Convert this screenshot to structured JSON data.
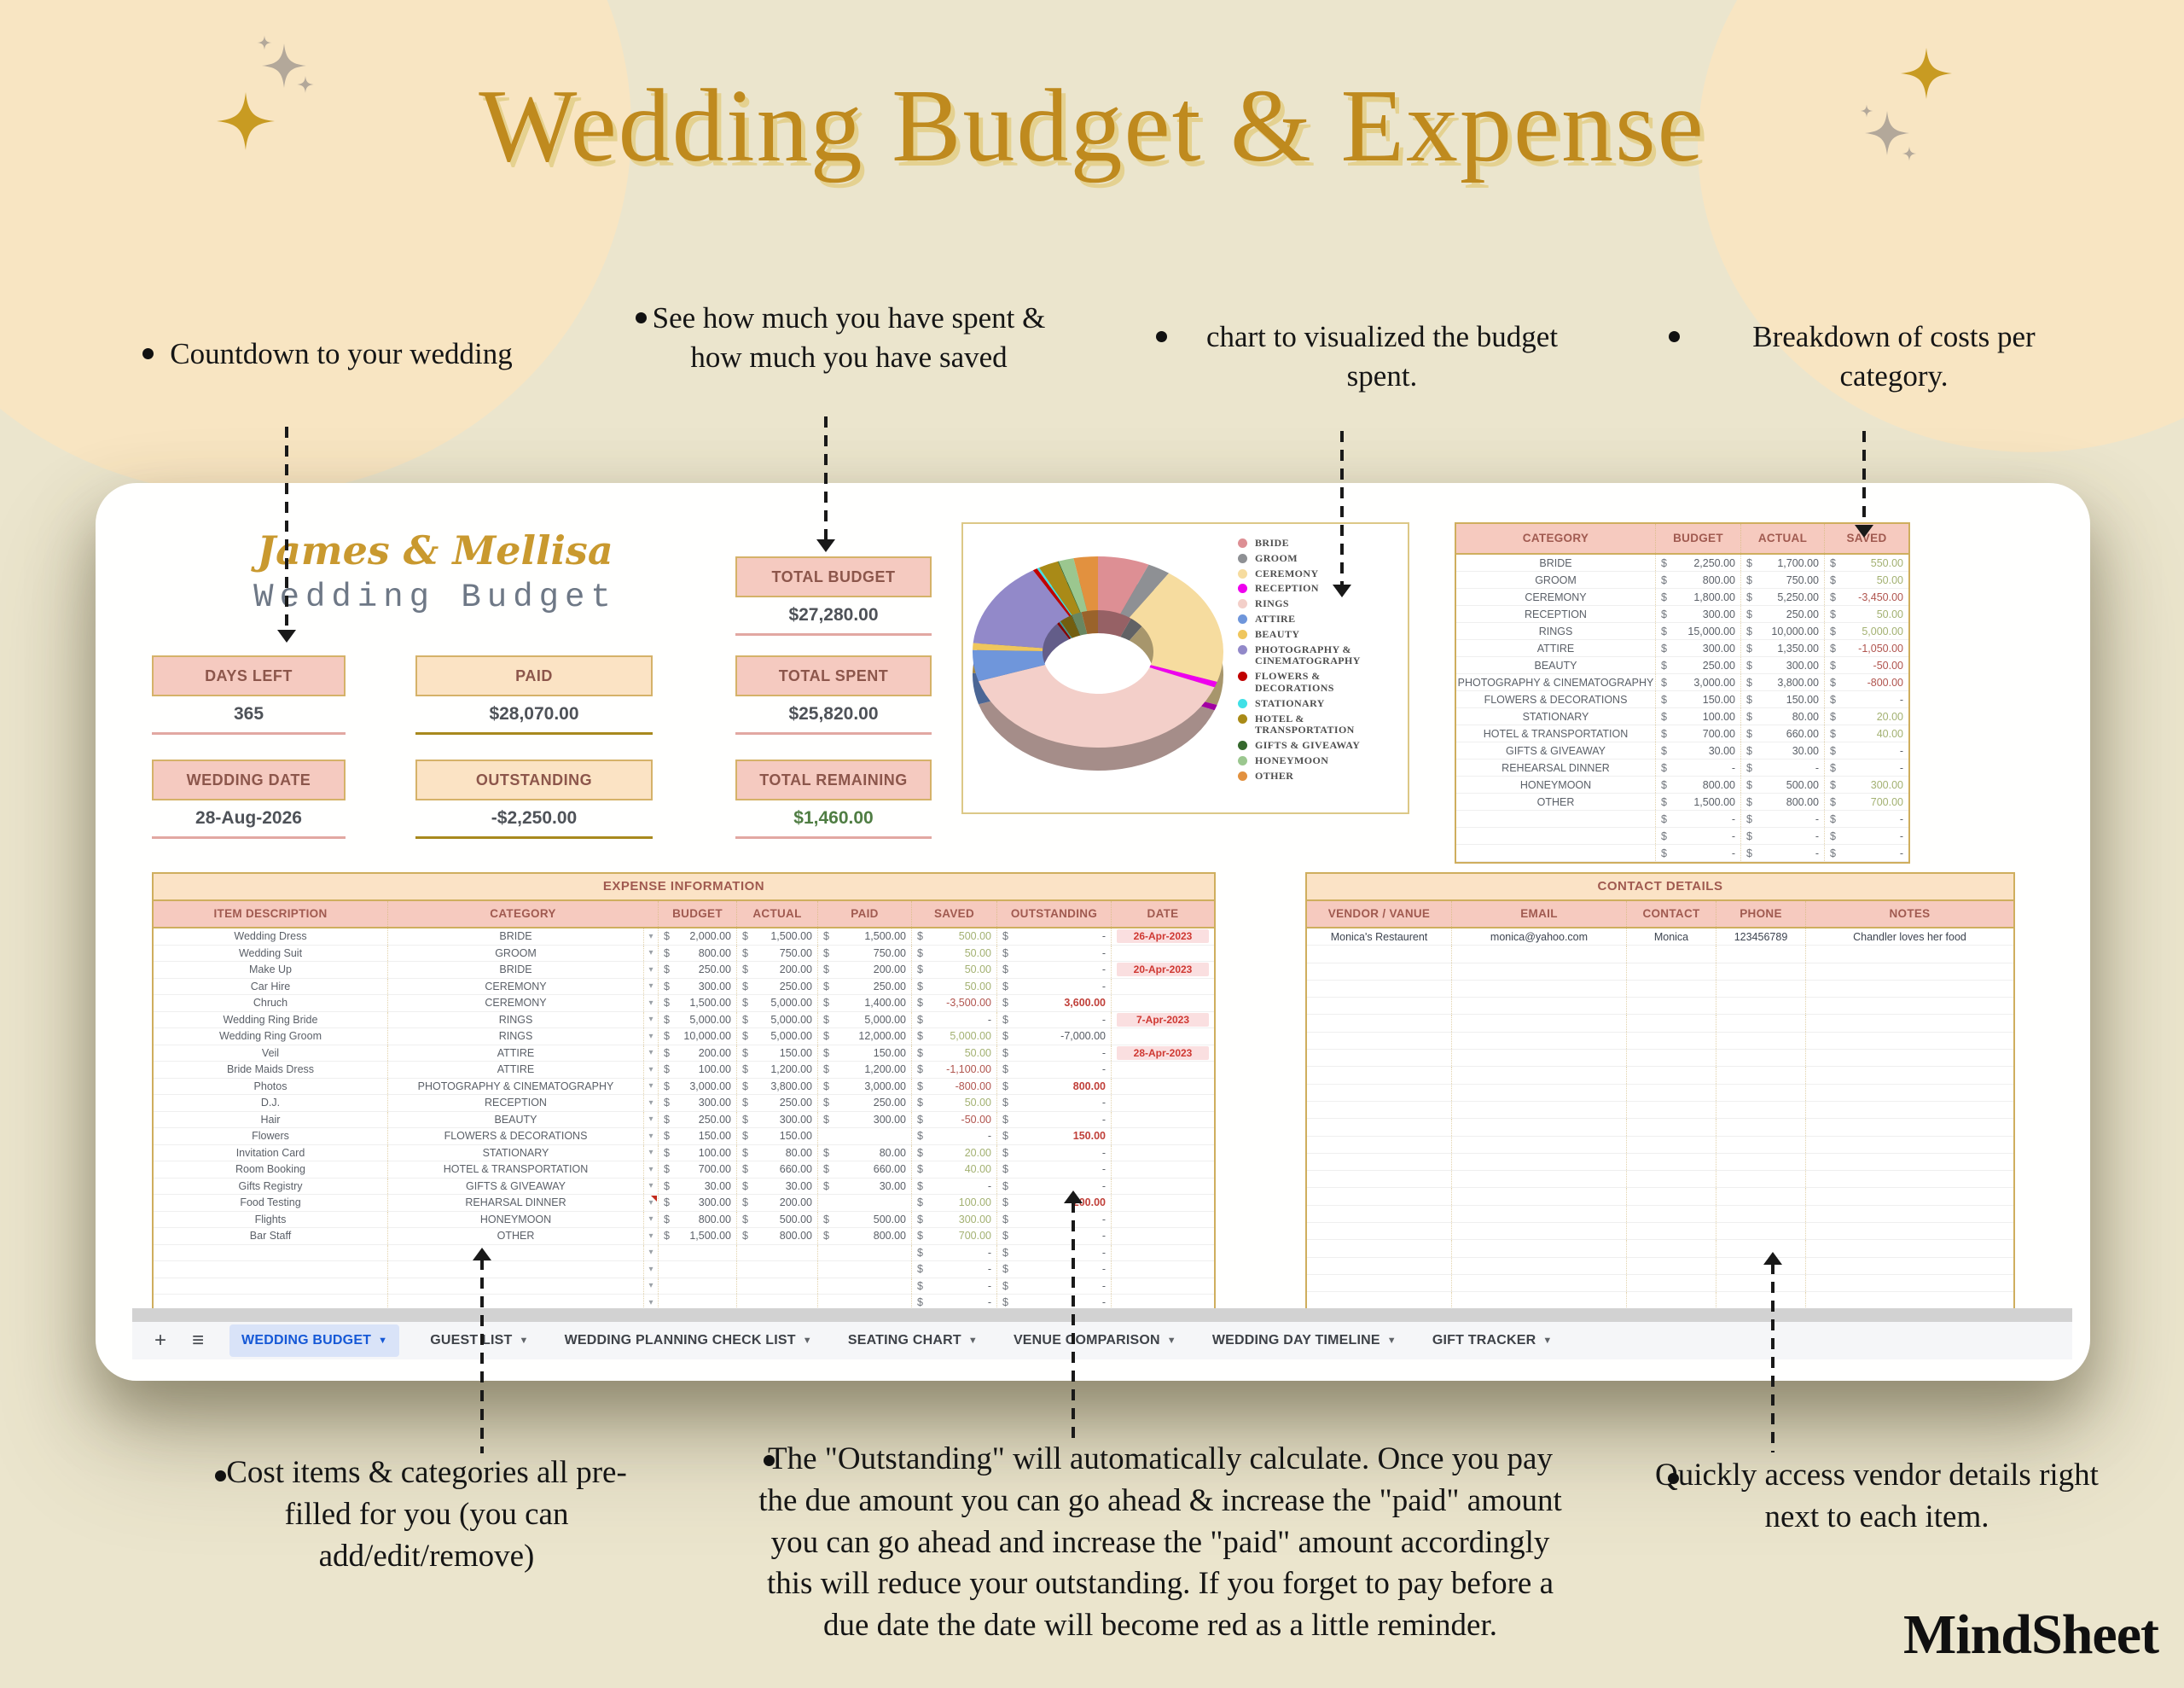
{
  "title": "Wedding Budget & Expense",
  "brand": "MindSheet",
  "notes_top": [
    "Countdown to your wedding",
    "See how much you have spent & how much you have saved",
    "chart to visualized the budget spent.",
    "Breakdown of costs per category."
  ],
  "notes_bottom": [
    "Cost items & categories all pre-filled for you (you can add/edit/remove)",
    "The \"Outstanding\" will automatically calculate. Once you pay the due amount you can go ahead & increase the \"paid\" amount you can go ahead and increase the \"paid\" amount accordingly this will reduce your outstanding. If you forget to pay before a due date the date will become red as a little reminder.",
    "Quickly access vendor details right next to each item."
  ],
  "sheet": {
    "couple": "James & Mellisa",
    "subtitle": "Wedding Budget",
    "currency": "$",
    "tiles": {
      "total_budget": {
        "label": "TOTAL BUDGET",
        "value": "$27,280.00"
      },
      "days_left": {
        "label": "DAYS LEFT",
        "value": "365"
      },
      "paid": {
        "label": "PAID",
        "value": "$28,070.00"
      },
      "total_spent": {
        "label": "TOTAL SPENT",
        "value": "$25,820.00"
      },
      "wedding_date": {
        "label": "WEDDING DATE",
        "value": "28-Aug-2026"
      },
      "outstanding": {
        "label": "OUTSTANDING",
        "value": "-$2,250.00"
      },
      "total_remaining": {
        "label": "TOTAL REMAINING",
        "value": "$1,460.00"
      }
    },
    "category_table": {
      "headers": [
        "CATEGORY",
        "BUDGET",
        "ACTUAL",
        "SAVED"
      ],
      "rows": [
        {
          "cat": "BRIDE",
          "budget": "2,250.00",
          "actual": "1,700.00",
          "saved": "550.00",
          "cls": "pos"
        },
        {
          "cat": "GROOM",
          "budget": "800.00",
          "actual": "750.00",
          "saved": "50.00",
          "cls": "pos"
        },
        {
          "cat": "CEREMONY",
          "budget": "1,800.00",
          "actual": "5,250.00",
          "saved": "-3,450.00",
          "cls": "neg"
        },
        {
          "cat": "RECEPTION",
          "budget": "300.00",
          "actual": "250.00",
          "saved": "50.00",
          "cls": "pos"
        },
        {
          "cat": "RINGS",
          "budget": "15,000.00",
          "actual": "10,000.00",
          "saved": "5,000.00",
          "cls": "pos"
        },
        {
          "cat": "ATTIRE",
          "budget": "300.00",
          "actual": "1,350.00",
          "saved": "-1,050.00",
          "cls": "neg"
        },
        {
          "cat": "BEAUTY",
          "budget": "250.00",
          "actual": "300.00",
          "saved": "-50.00",
          "cls": "neg"
        },
        {
          "cat": "PHOTOGRAPHY & CINEMATOGRAPHY",
          "budget": "3,000.00",
          "actual": "3,800.00",
          "saved": "-800.00",
          "cls": "neg"
        },
        {
          "cat": "FLOWERS & DECORATIONS",
          "budget": "150.00",
          "actual": "150.00",
          "saved": "-",
          "cls": ""
        },
        {
          "cat": "STATIONARY",
          "budget": "100.00",
          "actual": "80.00",
          "saved": "20.00",
          "cls": "pos"
        },
        {
          "cat": "HOTEL & TRANSPORTATION",
          "budget": "700.00",
          "actual": "660.00",
          "saved": "40.00",
          "cls": "pos"
        },
        {
          "cat": "GIFTS & GIVEAWAY",
          "budget": "30.00",
          "actual": "30.00",
          "saved": "-",
          "cls": ""
        },
        {
          "cat": "REHEARSAL DINNER",
          "budget": "-",
          "actual": "-",
          "saved": "-",
          "cls": ""
        },
        {
          "cat": "HONEYMOON",
          "budget": "800.00",
          "actual": "500.00",
          "saved": "300.00",
          "cls": "pos"
        },
        {
          "cat": "OTHER",
          "budget": "1,500.00",
          "actual": "800.00",
          "saved": "700.00",
          "cls": "pos"
        },
        {
          "cat": "",
          "budget": "-",
          "actual": "-",
          "saved": "-",
          "cls": ""
        },
        {
          "cat": "",
          "budget": "-",
          "actual": "-",
          "saved": "-",
          "cls": ""
        },
        {
          "cat": "",
          "budget": "-",
          "actual": "-",
          "saved": "-",
          "cls": ""
        }
      ]
    },
    "expense_table": {
      "title": "EXPENSE INFORMATION",
      "headers": [
        "ITEM DESCRIPTION",
        "CATEGORY",
        "BUDGET",
        "ACTUAL",
        "PAID",
        "SAVED",
        "OUTSTANDING",
        "DATE"
      ],
      "rows": [
        {
          "item": "Wedding Dress",
          "cat": "BRIDE",
          "budget": "2,000.00",
          "actual": "1,500.00",
          "paid": "1,500.00",
          "saved": "500.00",
          "scls": "pos",
          "out": "-",
          "ocls": "",
          "date": "26-Apr-2023"
        },
        {
          "item": "Wedding Suit",
          "cat": "GROOM",
          "budget": "800.00",
          "actual": "750.00",
          "paid": "750.00",
          "saved": "50.00",
          "scls": "pos",
          "out": "-",
          "ocls": "",
          "date": ""
        },
        {
          "item": "Make Up",
          "cat": "BRIDE",
          "budget": "250.00",
          "actual": "200.00",
          "paid": "200.00",
          "saved": "50.00",
          "scls": "pos",
          "out": "-",
          "ocls": "",
          "date": "20-Apr-2023"
        },
        {
          "item": "Car Hire",
          "cat": "CEREMONY",
          "budget": "300.00",
          "actual": "250.00",
          "paid": "250.00",
          "saved": "50.00",
          "scls": "pos",
          "out": "-",
          "ocls": "",
          "date": ""
        },
        {
          "item": "Chruch",
          "cat": "CEREMONY",
          "budget": "1,500.00",
          "actual": "5,000.00",
          "paid": "1,400.00",
          "saved": "-3,500.00",
          "scls": "neg",
          "out": "3,600.00",
          "ocls": "redv",
          "date": ""
        },
        {
          "item": "Wedding Ring Bride",
          "cat": "RINGS",
          "budget": "5,000.00",
          "actual": "5,000.00",
          "paid": "5,000.00",
          "saved": "-",
          "scls": "",
          "out": "-",
          "ocls": "",
          "date": "7-Apr-2023"
        },
        {
          "item": "Wedding Ring Groom",
          "cat": "RINGS",
          "budget": "10,000.00",
          "actual": "5,000.00",
          "paid": "12,000.00",
          "saved": "5,000.00",
          "scls": "pos",
          "out": "-7,000.00",
          "ocls": "plainv",
          "date": ""
        },
        {
          "item": "Veil",
          "cat": "ATTIRE",
          "budget": "200.00",
          "actual": "150.00",
          "paid": "150.00",
          "saved": "50.00",
          "scls": "pos",
          "out": "-",
          "ocls": "",
          "date": "28-Apr-2023"
        },
        {
          "item": "Bride Maids Dress",
          "cat": "ATTIRE",
          "budget": "100.00",
          "actual": "1,200.00",
          "paid": "1,200.00",
          "saved": "-1,100.00",
          "scls": "neg",
          "out": "-",
          "ocls": "",
          "date": ""
        },
        {
          "item": "Photos",
          "cat": "PHOTOGRAPHY & CINEMATOGRAPHY",
          "budget": "3,000.00",
          "actual": "3,800.00",
          "paid": "3,000.00",
          "saved": "-800.00",
          "scls": "neg",
          "out": "800.00",
          "ocls": "redv",
          "date": ""
        },
        {
          "item": "D.J.",
          "cat": "RECEPTION",
          "budget": "300.00",
          "actual": "250.00",
          "paid": "250.00",
          "saved": "50.00",
          "scls": "pos",
          "out": "-",
          "ocls": "",
          "date": ""
        },
        {
          "item": "Hair",
          "cat": "BEAUTY",
          "budget": "250.00",
          "actual": "300.00",
          "paid": "300.00",
          "saved": "-50.00",
          "scls": "neg",
          "out": "-",
          "ocls": "",
          "date": ""
        },
        {
          "item": "Flowers",
          "cat": "FLOWERS & DECORATIONS",
          "budget": "150.00",
          "actual": "150.00",
          "paid": "",
          "saved": "-",
          "scls": "",
          "out": "150.00",
          "ocls": "redv",
          "date": ""
        },
        {
          "item": "Invitation Card",
          "cat": "STATIONARY",
          "budget": "100.00",
          "actual": "80.00",
          "paid": "80.00",
          "saved": "20.00",
          "scls": "pos",
          "out": "-",
          "ocls": "",
          "date": ""
        },
        {
          "item": "Room Booking",
          "cat": "HOTEL & TRANSPORTATION",
          "budget": "700.00",
          "actual": "660.00",
          "paid": "660.00",
          "saved": "40.00",
          "scls": "pos",
          "out": "-",
          "ocls": "",
          "date": ""
        },
        {
          "item": "Gifts Registry",
          "cat": "GIFTS & GIVEAWAY",
          "budget": "30.00",
          "actual": "30.00",
          "paid": "30.00",
          "saved": "-",
          "scls": "",
          "out": "-",
          "ocls": "",
          "date": ""
        },
        {
          "item": "Food Testing",
          "cat": "REHARSAL DINNER",
          "budget": "300.00",
          "actual": "200.00",
          "paid": "",
          "saved": "100.00",
          "scls": "pos",
          "out": "200.00",
          "ocls": "redv",
          "date": "",
          "note": true
        },
        {
          "item": "Flights",
          "cat": "HONEYMOON",
          "budget": "800.00",
          "actual": "500.00",
          "paid": "500.00",
          "saved": "300.00",
          "scls": "pos",
          "out": "-",
          "ocls": "",
          "date": ""
        },
        {
          "item": "Bar Staff",
          "cat": "OTHER",
          "budget": "1,500.00",
          "actual": "800.00",
          "paid": "800.00",
          "saved": "700.00",
          "scls": "pos",
          "out": "-",
          "ocls": "",
          "date": ""
        }
      ],
      "empty_rows": 6
    },
    "contact_table": {
      "title": "CONTACT DETAILS",
      "headers": [
        "VENDOR / VANUE",
        "EMAIL",
        "CONTACT",
        "PHONE",
        "NOTES"
      ],
      "rows": [
        {
          "vendor": "Monica's Restaurent",
          "email": "monica@yahoo.com",
          "contact": "Monica",
          "phone": "123456789",
          "notes": "Chandler loves her food"
        }
      ],
      "empty_rows": 23
    },
    "tabs": {
      "items": [
        {
          "label": "WEDDING BUDGET",
          "active": true
        },
        {
          "label": "GUEST LIST",
          "active": false
        },
        {
          "label": "WEDDING PLANNING CHECK LIST",
          "active": false
        },
        {
          "label": "SEATING CHART",
          "active": false
        },
        {
          "label": "VENUE COMPARISON",
          "active": false
        },
        {
          "label": "WEDDING DAY TIMELINE",
          "active": false
        },
        {
          "label": "GIFT TRACKER",
          "active": false
        }
      ]
    }
  },
  "chart_data": {
    "type": "pie",
    "donut": true,
    "title": "",
    "legend_position": "right",
    "categories": [
      "BRIDE",
      "GROOM",
      "CEREMONY",
      "RECEPTION",
      "RINGS",
      "ATTIRE",
      "BEAUTY",
      "PHOTOGRAPHY & CINEMATOGRAPHY",
      "FLOWERS & DECORATIONS",
      "STATIONARY",
      "HOTEL & TRANSPORTATION",
      "GIFTS & GIVEAWAY",
      "HONEYMOON",
      "OTHER"
    ],
    "values": [
      1700,
      750,
      5250,
      250,
      10000,
      1350,
      300,
      3800,
      150,
      80,
      660,
      30,
      500,
      800
    ],
    "colors": [
      "#dd8f94",
      "#8e9094",
      "#f6dc9f",
      "#ee00ee",
      "#f3cfc9",
      "#6f96db",
      "#efc65d",
      "#9289c9",
      "#c00000",
      "#40e0e6",
      "#a98a17",
      "#35682d",
      "#9bc78f",
      "#e2913f"
    ]
  },
  "colors": {
    "accent_gold": "#bf8a1e",
    "header_pink": "#f6cabf",
    "header_peach": "#fbe3c6",
    "tab_active_blue": "#1558d6",
    "saved_green": "#a3b172",
    "alert_red": "#c0403a",
    "background": "#ebe5cd"
  }
}
